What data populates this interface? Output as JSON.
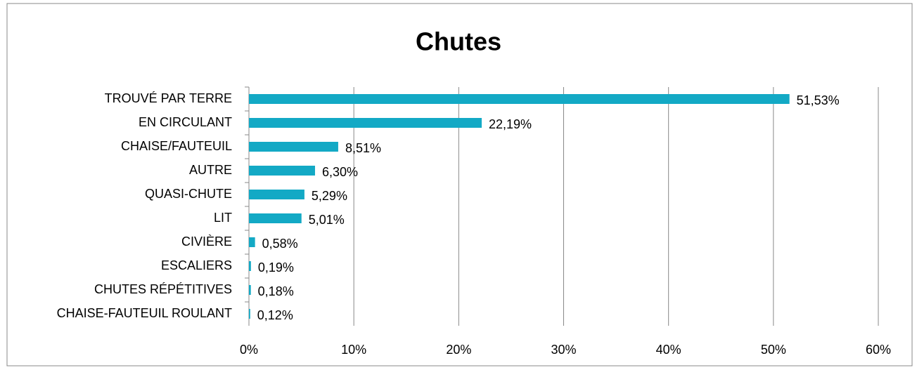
{
  "chart_data": {
    "type": "hbar",
    "title": "Chutes",
    "categories": [
      "TROUVÉ PAR TERRE",
      "EN CIRCULANT",
      "CHAISE/FAUTEUIL",
      "AUTRE",
      "QUASI-CHUTE",
      "LIT",
      "CIVIÈRE",
      "ESCALIERS",
      "CHUTES RÉPÉTITIVES",
      "CHAISE-FAUTEUIL ROULANT"
    ],
    "values": [
      51.53,
      22.19,
      8.51,
      6.3,
      5.29,
      5.01,
      0.58,
      0.19,
      0.18,
      0.12
    ],
    "value_labels": [
      "51,53%",
      "22,19%",
      "8,51%",
      "6,30%",
      "5,29%",
      "5,01%",
      "0,58%",
      "0,19%",
      "0,18%",
      "0,12%"
    ],
    "color": "#13a9c5",
    "xlim": [
      0,
      60
    ],
    "xticks": [
      {
        "value": 0,
        "label": "0%"
      },
      {
        "value": 10,
        "label": "10%"
      },
      {
        "value": 20,
        "label": "20%"
      },
      {
        "value": 30,
        "label": "30%"
      },
      {
        "value": 40,
        "label": "40%"
      },
      {
        "value": 50,
        "label": "50%"
      },
      {
        "value": 60,
        "label": "60%"
      }
    ],
    "grid": true
  }
}
